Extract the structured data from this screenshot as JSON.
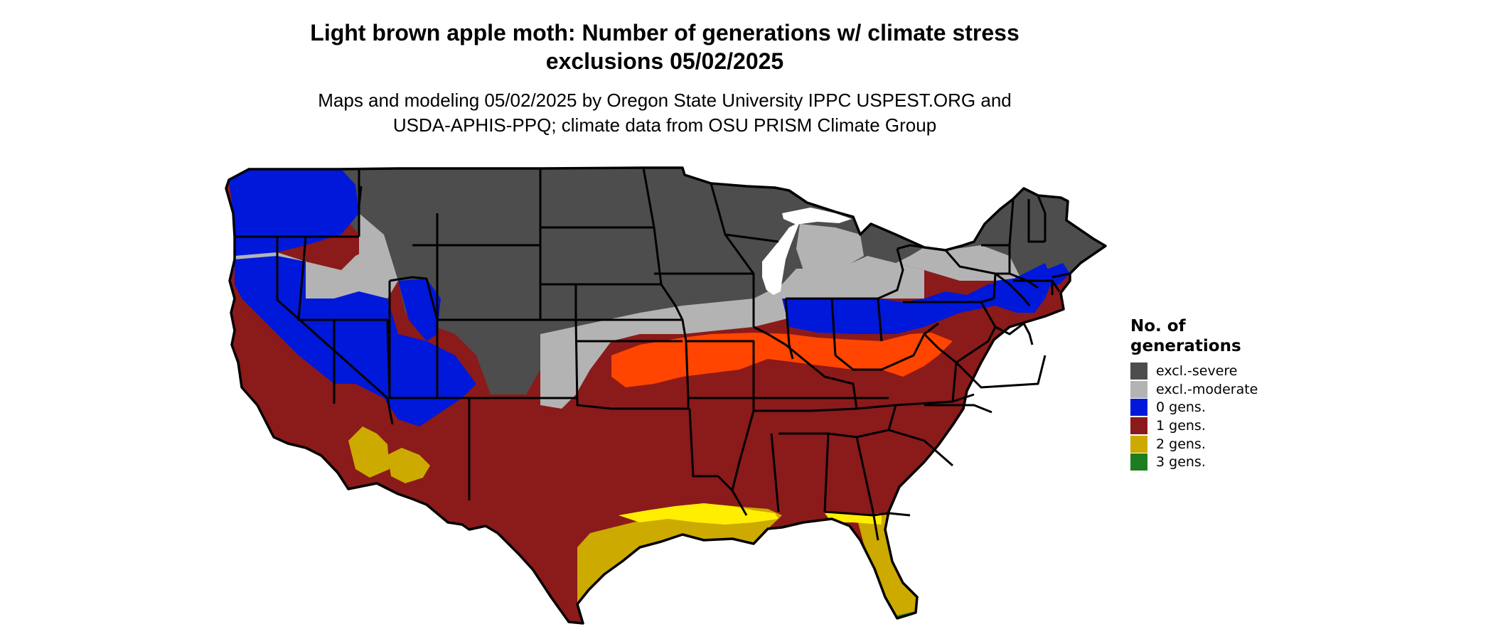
{
  "title_line1": "Light brown apple moth: Number of generations w/ climate stress",
  "title_line2": "exclusions 05/02/2025",
  "subtitle_line1": "Maps and modeling 05/02/2025 by Oregon State University IPPC USPEST.ORG and",
  "subtitle_line2": "USDA-APHIS-PPQ; climate data from OSU PRISM Climate Group",
  "legend": {
    "title_line1": "No. of",
    "title_line2": "generations",
    "items": [
      {
        "label": "excl.-severe",
        "color": "#4d4d4d"
      },
      {
        "label": "excl.-moderate",
        "color": "#b3b3b3"
      },
      {
        "label": "0 gens.",
        "color": "#0018d9"
      },
      {
        "label": "1 gens.",
        "color": "#8b1a1a"
      },
      {
        "label": "2 gens.",
        "color": "#ccaa00"
      },
      {
        "label": "3 gens.",
        "color": "#1e7d1e"
      }
    ]
  },
  "map": {
    "region": "Conterminous United States",
    "orange_band_color": "#ff4500",
    "bright_yellow_color": "#ffee00",
    "state_border_color": "#000000"
  }
}
